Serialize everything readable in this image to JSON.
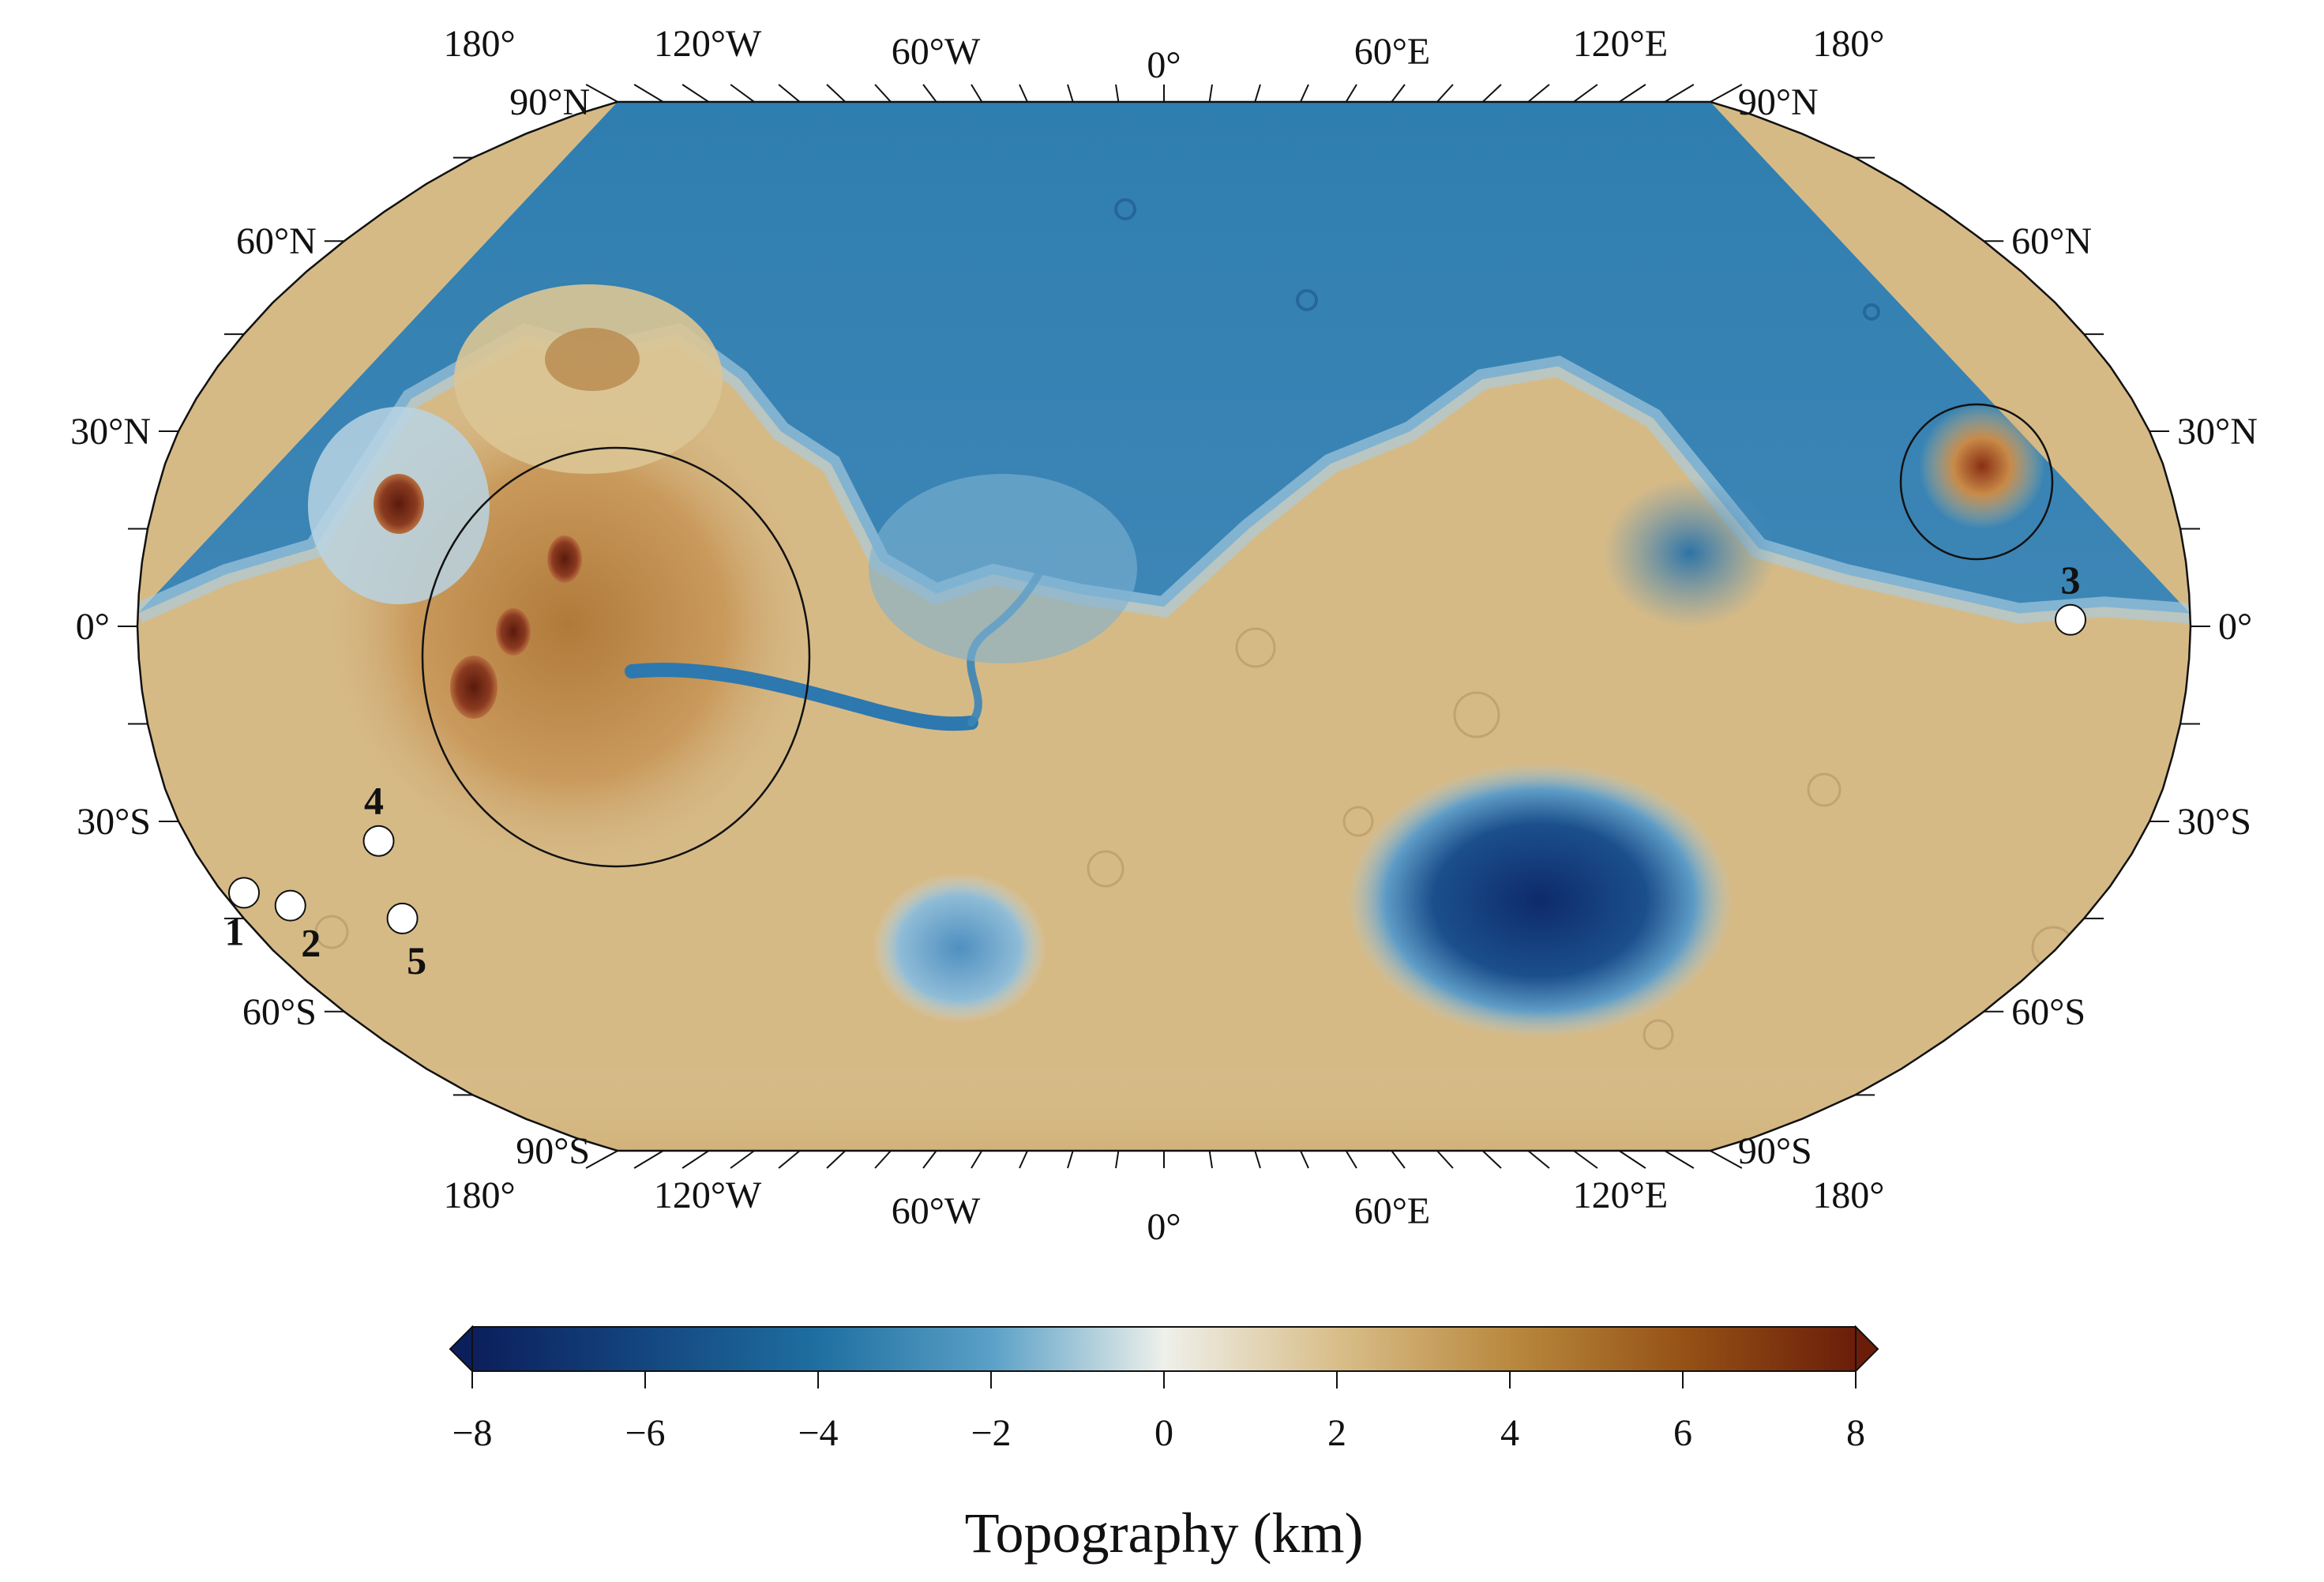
{
  "map": {
    "projection": "Robinson",
    "lon_labels": [
      {
        "lon": -180,
        "text": "180°"
      },
      {
        "lon": -120,
        "text": "120°W"
      },
      {
        "lon": -60,
        "text": "60°W"
      },
      {
        "lon": 0,
        "text": "0°"
      },
      {
        "lon": 60,
        "text": "60°E"
      },
      {
        "lon": 120,
        "text": "120°E"
      },
      {
        "lon": 180,
        "text": "180°"
      }
    ],
    "lat_labels": [
      {
        "lat": 90,
        "text": "90°N"
      },
      {
        "lat": 60,
        "text": "60°N"
      },
      {
        "lat": 30,
        "text": "30°N"
      },
      {
        "lat": 0,
        "text": "0°"
      },
      {
        "lat": -30,
        "text": "30°S"
      },
      {
        "lat": -60,
        "text": "60°S"
      },
      {
        "lat": -90,
        "text": "90°S"
      }
    ],
    "sites": [
      {
        "label": "1",
        "lon": -176,
        "lat": -41
      },
      {
        "label": "2",
        "lon": -169,
        "lat": -43
      },
      {
        "label": "3",
        "lon": 159,
        "lat": 1
      },
      {
        "lon": -145,
        "label": "4",
        "lat": -33
      },
      {
        "label": "5",
        "lon": -149,
        "lat": -45
      }
    ]
  },
  "colorbar": {
    "title": "Topography (km)",
    "min": -8,
    "max": 8,
    "ticks": [
      "−8",
      "−6",
      "−4",
      "−2",
      "0",
      "2",
      "4",
      "6",
      "8"
    ],
    "colors": [
      "#0b1f5c",
      "#14467f",
      "#1f6fa0",
      "#5aa0c7",
      "#eef0ea",
      "#d9be8a",
      "#b9893f",
      "#955216",
      "#6b1d0a"
    ]
  }
}
